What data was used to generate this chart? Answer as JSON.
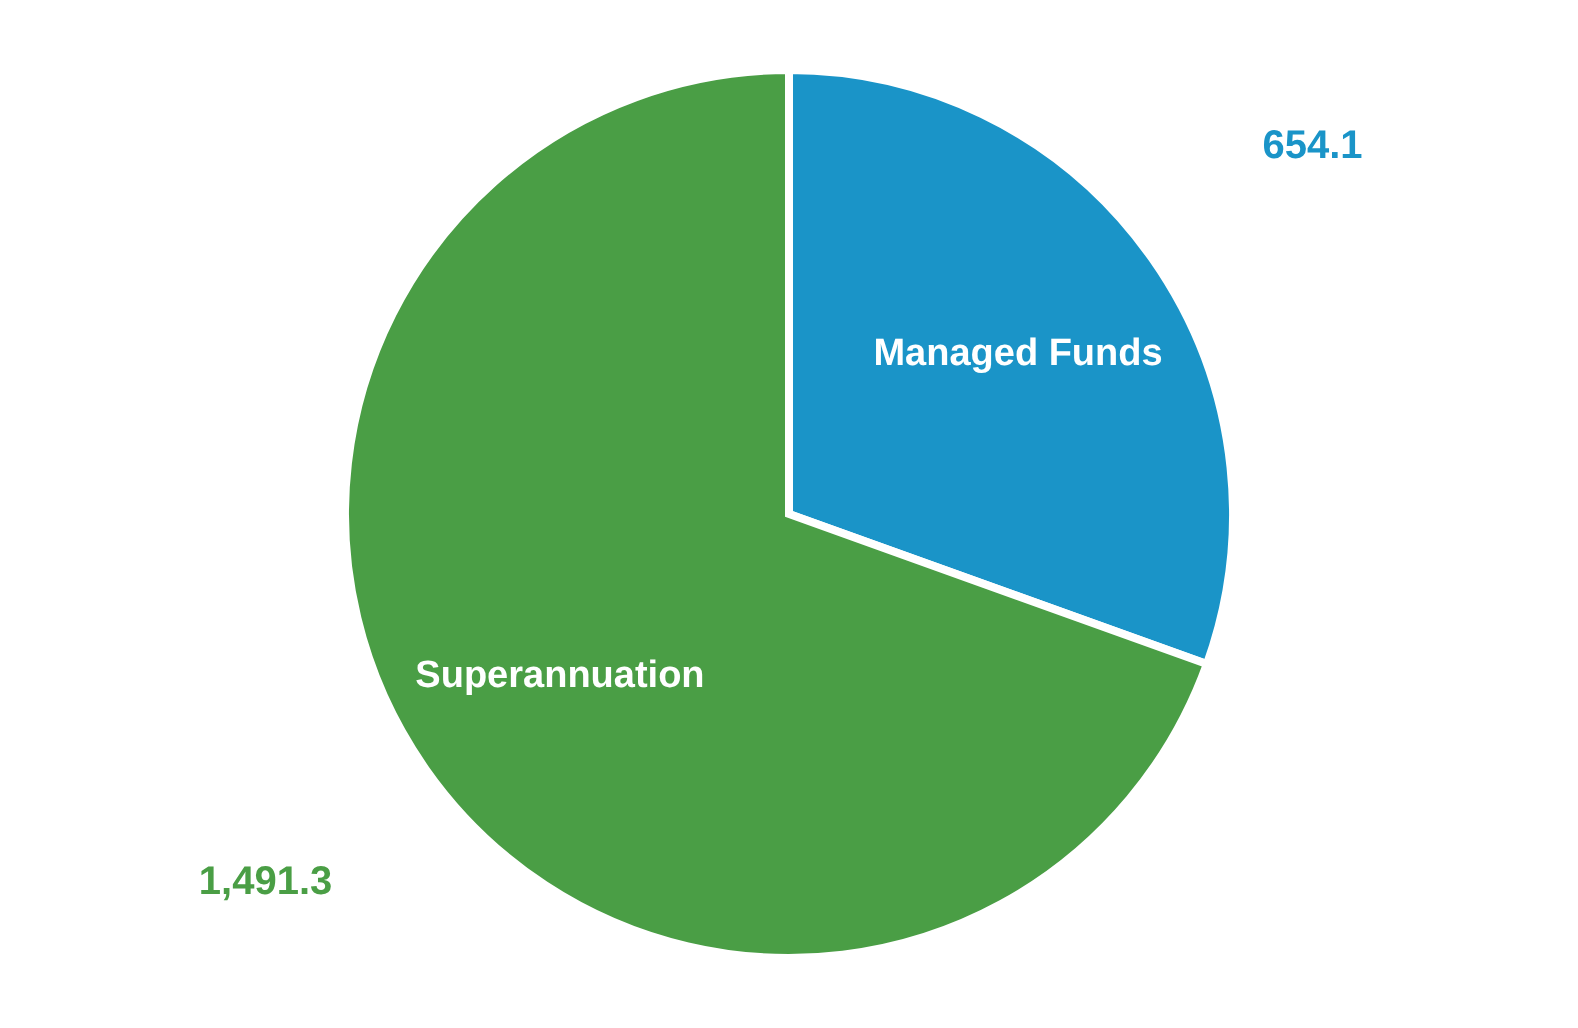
{
  "chart_data": {
    "type": "pie",
    "categories": [
      "Managed Funds",
      "Superannuation"
    ],
    "values": [
      654.1,
      1491.3
    ],
    "value_labels": [
      "654.1",
      "1,491.3"
    ],
    "colors": [
      "#1a94c8",
      "#4a9e45"
    ]
  }
}
